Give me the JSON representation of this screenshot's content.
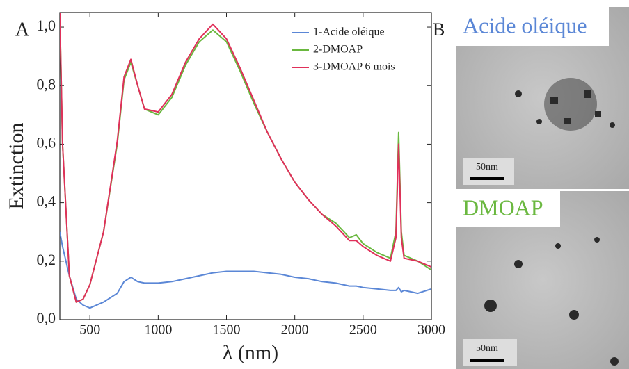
{
  "chart_data": {
    "type": "line",
    "xlabel": "λ (nm)",
    "ylabel": "Extinction",
    "x": [
      280,
      300,
      350,
      400,
      450,
      500,
      600,
      700,
      750,
      800,
      850,
      900,
      1000,
      1100,
      1200,
      1300,
      1400,
      1500,
      1600,
      1700,
      1800,
      1900,
      2000,
      2100,
      2200,
      2300,
      2400,
      2450,
      2500,
      2600,
      2700,
      2740,
      2760,
      2780,
      2800,
      2900,
      3000
    ],
    "series": [
      {
        "name": "1-Acide oléique",
        "color": "#5b87d6",
        "values": [
          0.3,
          0.25,
          0.15,
          0.07,
          0.05,
          0.04,
          0.06,
          0.09,
          0.13,
          0.145,
          0.13,
          0.125,
          0.125,
          0.13,
          0.14,
          0.15,
          0.16,
          0.165,
          0.165,
          0.165,
          0.16,
          0.155,
          0.145,
          0.14,
          0.13,
          0.125,
          0.115,
          0.115,
          0.11,
          0.105,
          0.1,
          0.1,
          0.11,
          0.095,
          0.1,
          0.09,
          0.105
        ]
      },
      {
        "name": "2-DMOAP",
        "color": "#6ab83f",
        "values": [
          1.05,
          0.6,
          0.15,
          0.06,
          0.07,
          0.12,
          0.3,
          0.6,
          0.82,
          0.88,
          0.8,
          0.72,
          0.7,
          0.76,
          0.87,
          0.95,
          0.99,
          0.95,
          0.85,
          0.74,
          0.64,
          0.55,
          0.47,
          0.41,
          0.36,
          0.33,
          0.28,
          0.29,
          0.26,
          0.23,
          0.21,
          0.3,
          0.64,
          0.3,
          0.22,
          0.2,
          0.17
        ]
      },
      {
        "name": "3-DMOAP 6 mois",
        "color": "#e0305a",
        "values": [
          1.05,
          0.6,
          0.15,
          0.06,
          0.07,
          0.12,
          0.3,
          0.61,
          0.83,
          0.89,
          0.8,
          0.72,
          0.71,
          0.77,
          0.88,
          0.96,
          1.01,
          0.96,
          0.86,
          0.75,
          0.64,
          0.55,
          0.47,
          0.41,
          0.36,
          0.32,
          0.27,
          0.27,
          0.25,
          0.22,
          0.2,
          0.28,
          0.6,
          0.28,
          0.21,
          0.2,
          0.18
        ]
      }
    ],
    "xlim": [
      280,
      3000
    ],
    "xticks": [
      500,
      1000,
      1500,
      2000,
      2500,
      3000
    ],
    "ylim": [
      0,
      1.05
    ],
    "yticks": [
      {
        "value": 0,
        "label": "0,0"
      },
      {
        "value": 0.2,
        "label": "0,2"
      },
      {
        "value": 0.4,
        "label": "0,4"
      },
      {
        "value": 0.6,
        "label": "0,6"
      },
      {
        "value": 0.8,
        "label": "0,8"
      },
      {
        "value": 1.0,
        "label": "1,0"
      }
    ],
    "legend": "upper right",
    "grid": false
  },
  "panels": {
    "a_label": "A",
    "b_label": "B",
    "images": [
      {
        "label": "Acide oléique",
        "scale_bar": "50nm"
      },
      {
        "label": "DMOAP",
        "scale_bar": "50nm"
      }
    ]
  }
}
